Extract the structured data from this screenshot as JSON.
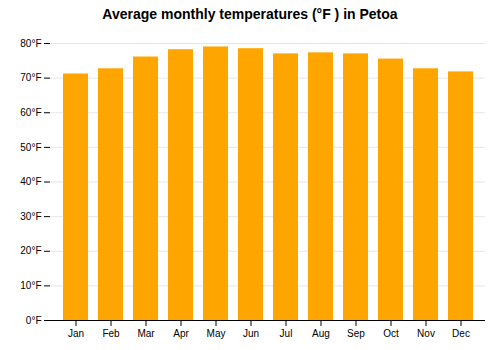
{
  "chart_data": {
    "type": "bar",
    "title": "Average monthly temperatures (°F ) in Petoa",
    "categories": [
      "Jan",
      "Feb",
      "Mar",
      "Apr",
      "May",
      "Jun",
      "Jul",
      "Aug",
      "Sep",
      "Oct",
      "Nov",
      "Dec"
    ],
    "values": [
      71.2,
      72.7,
      76.1,
      78.2,
      79.0,
      78.5,
      77.0,
      77.3,
      77.0,
      75.5,
      72.7,
      71.8
    ],
    "color": "#FFA500",
    "ylim": [
      0,
      80
    ],
    "yticks": [
      {
        "value": 0,
        "label": "0°F"
      },
      {
        "value": 10,
        "label": "10°F"
      },
      {
        "value": 20,
        "label": "20°F"
      },
      {
        "value": 30,
        "label": "30°F"
      },
      {
        "value": 40,
        "label": "40°F"
      },
      {
        "value": 50,
        "label": "50°F"
      },
      {
        "value": 60,
        "label": "60°F"
      },
      {
        "value": 70,
        "label": "70°F"
      },
      {
        "value": 80,
        "label": "80°F"
      }
    ],
    "grid": true
  }
}
